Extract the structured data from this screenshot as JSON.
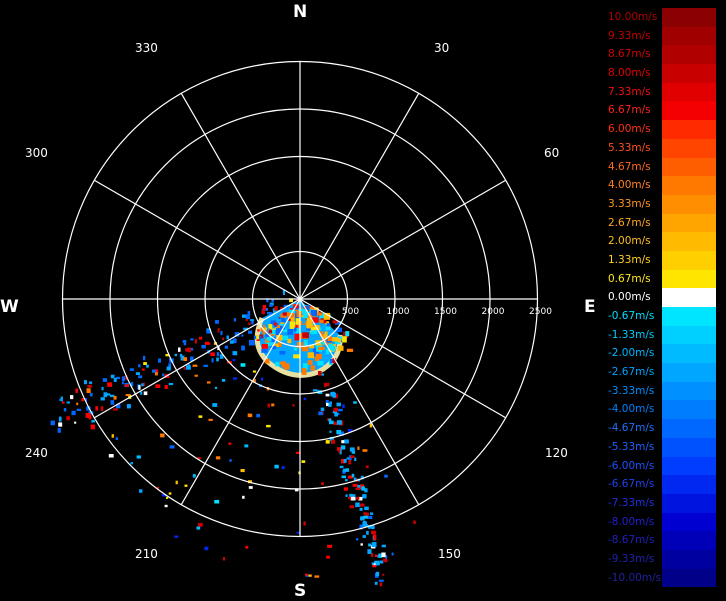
{
  "compass": {
    "n": "N",
    "e": "E",
    "s": "S",
    "w": "W"
  },
  "angles": {
    "a30": "30",
    "a60": "60",
    "a120": "120",
    "a150": "150",
    "a210": "210",
    "a240": "240",
    "a300": "300",
    "a330": "330"
  },
  "range_labels": [
    "500",
    "1000",
    "1500",
    "2000",
    "2500"
  ],
  "legend": [
    {
      "label": "10.00m/s",
      "color": "#8b0000",
      "text": "#b00000"
    },
    {
      "label": "9.33m/s",
      "color": "#a00000",
      "text": "#c00000"
    },
    {
      "label": "8.67m/s",
      "color": "#b00000",
      "text": "#d00000"
    },
    {
      "label": "8.00m/s",
      "color": "#c80000",
      "text": "#e00000"
    },
    {
      "label": "7.33m/s",
      "color": "#e00000",
      "text": "#f01010"
    },
    {
      "label": "6.67m/s",
      "color": "#f50000",
      "text": "#ff2020"
    },
    {
      "label": "6.00m/s",
      "color": "#ff2a00",
      "text": "#ff3010"
    },
    {
      "label": "5.33m/s",
      "color": "#ff4500",
      "text": "#ff5020"
    },
    {
      "label": "4.67m/s",
      "color": "#ff5e00",
      "text": "#ff6a20"
    },
    {
      "label": "4.00m/s",
      "color": "#ff7800",
      "text": "#ff8020"
    },
    {
      "label": "3.33m/s",
      "color": "#ff8f00",
      "text": "#ff9420"
    },
    {
      "label": "2.67m/s",
      "color": "#ffa500",
      "text": "#ffa820"
    },
    {
      "label": "2.00m/s",
      "color": "#ffbb00",
      "text": "#ffbe20"
    },
    {
      "label": "1.33m/s",
      "color": "#ffd000",
      "text": "#ffd020"
    },
    {
      "label": "0.67m/s",
      "color": "#ffe600",
      "text": "#ffe820"
    },
    {
      "label": "0.00m/s",
      "color": "#ffffff",
      "text": "#ffffff"
    },
    {
      "label": "-0.67m/s",
      "color": "#00e5ff",
      "text": "#00e0ff"
    },
    {
      "label": "-1.33m/s",
      "color": "#00d0ff",
      "text": "#00ccff"
    },
    {
      "label": "-2.00m/s",
      "color": "#00bbff",
      "text": "#00b8ff"
    },
    {
      "label": "-2.67m/s",
      "color": "#00a6ff",
      "text": "#00a4ff"
    },
    {
      "label": "-3.33m/s",
      "color": "#0090ff",
      "text": "#0090ff"
    },
    {
      "label": "-4.00m/s",
      "color": "#007cff",
      "text": "#0080ff"
    },
    {
      "label": "-4.67m/s",
      "color": "#0067ff",
      "text": "#2070ff"
    },
    {
      "label": "-5.33m/s",
      "color": "#0052ff",
      "text": "#2060ff"
    },
    {
      "label": "-6.00m/s",
      "color": "#003dff",
      "text": "#2050ff"
    },
    {
      "label": "-6.67m/s",
      "color": "#0028f0",
      "text": "#2040f0"
    },
    {
      "label": "-7.33m/s",
      "color": "#0014e0",
      "text": "#2030e0"
    },
    {
      "label": "-8.00m/s",
      "color": "#0000d0",
      "text": "#2020d0"
    },
    {
      "label": "-8.67m/s",
      "color": "#0000b8",
      "text": "#2020c0"
    },
    {
      "label": "-9.33m/s",
      "color": "#0000a0",
      "text": "#2020b0"
    },
    {
      "label": "-10.00m/s",
      "color": "#000088",
      "text": "#2020a0"
    }
  ]
}
